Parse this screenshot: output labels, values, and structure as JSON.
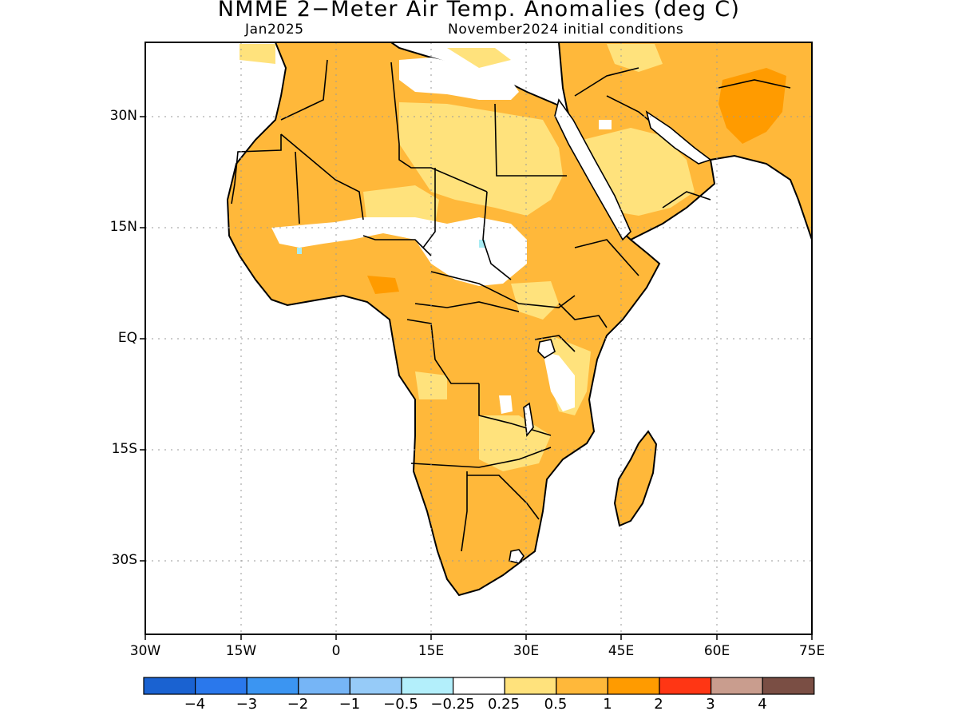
{
  "title": "NMME 2−Meter Air Temp. Anomalies (deg C)",
  "subtitle_left": "Jan2025",
  "subtitle_right": "November2024 initial conditions",
  "map": {
    "lon_range": [
      -30,
      75
    ],
    "lat_range": [
      -40,
      40
    ],
    "latitude_ticks": [
      "30N",
      "15N",
      "EQ",
      "15S",
      "30S"
    ],
    "longitude_ticks": [
      "30W",
      "15W",
      "0",
      "15E",
      "30E",
      "45E",
      "60E",
      "75E"
    ],
    "grid": "dotted",
    "dominant_anomaly_category": "0.5 to 1 deg C",
    "colors": {
      "warm_05_1": "#ffb83a",
      "warm_025_05": "#ffe27c",
      "warm_1_2": "#ff9b00",
      "cool_025": "#a8ecf4",
      "land_outline": "#000000"
    }
  },
  "colorbar": {
    "colors": [
      "#1a62d1",
      "#2a78ec",
      "#3b95f2",
      "#76b5f6",
      "#96cbf8",
      "#b3effb",
      "#ffffff",
      "#ffe27c",
      "#ffb83a",
      "#ff9b00",
      "#ff3614",
      "#c99d8e",
      "#7a4e44"
    ],
    "labels": [
      "−4",
      "−3",
      "−2",
      "−1",
      "−0.5",
      "−0.25",
      "0.25",
      "0.5",
      "1",
      "2",
      "3",
      "4"
    ]
  }
}
